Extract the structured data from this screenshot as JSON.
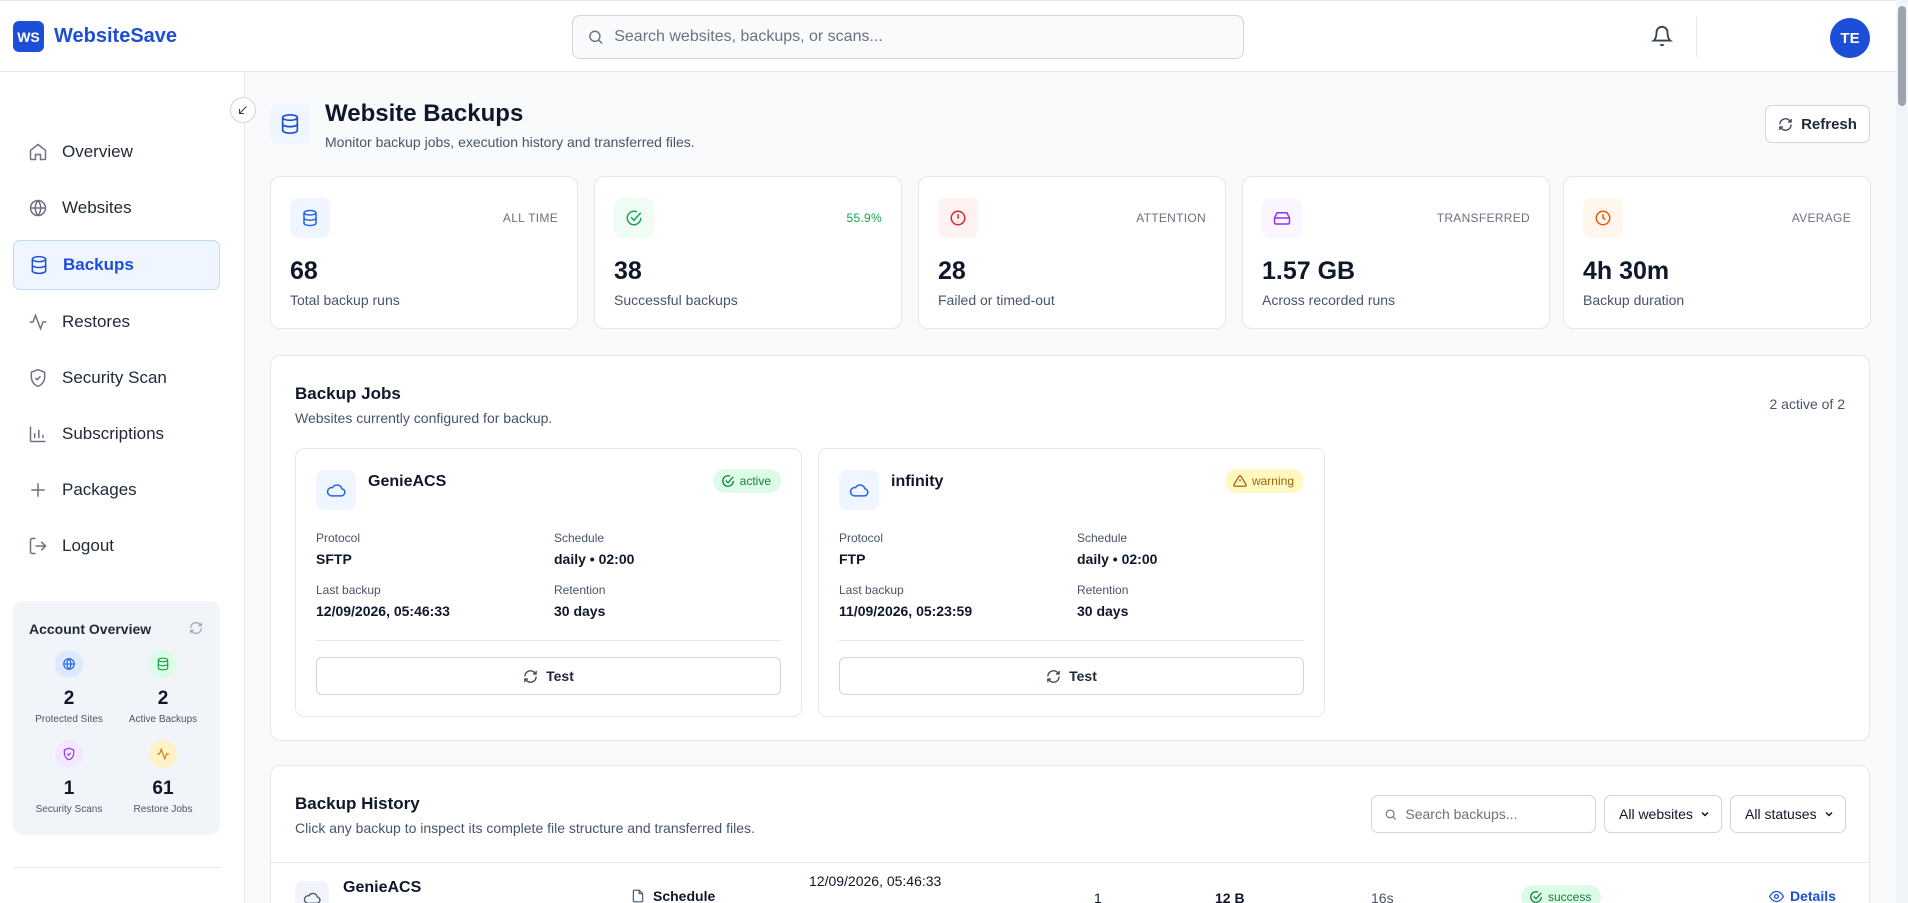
{
  "app": {
    "logo_badge": "WS",
    "name": "WebsiteSave"
  },
  "header": {
    "search_placeholder": "Search websites, backups, or scans...",
    "avatar_initials": "TE"
  },
  "sidebar": {
    "items": [
      {
        "label": "Overview",
        "icon": "home-icon"
      },
      {
        "label": "Websites",
        "icon": "globe-icon"
      },
      {
        "label": "Backups",
        "icon": "database-icon",
        "active": true
      },
      {
        "label": "Restores",
        "icon": "activity-icon"
      },
      {
        "label": "Security Scan",
        "icon": "shield-icon"
      },
      {
        "label": "Subscriptions",
        "icon": "bar-chart-icon"
      },
      {
        "label": "Packages",
        "icon": "plus-icon"
      },
      {
        "label": "Logout",
        "icon": "logout-icon"
      }
    ],
    "account_overview": {
      "title": "Account Overview",
      "stats": [
        {
          "value": "2",
          "label": "Protected Sites"
        },
        {
          "value": "2",
          "label": "Active Backups"
        },
        {
          "value": "1",
          "label": "Security Scans"
        },
        {
          "value": "61",
          "label": "Restore Jobs"
        }
      ]
    }
  },
  "page": {
    "title": "Website Backups",
    "subtitle": "Monitor backup jobs, execution history and transferred files.",
    "refresh_label": "Refresh"
  },
  "stats": [
    {
      "tag": "ALL TIME",
      "value": "68",
      "desc": "Total backup runs",
      "color": "#2563eb"
    },
    {
      "tag": "55.9%",
      "value": "38",
      "desc": "Successful backups",
      "color": "#16a34a"
    },
    {
      "tag": "ATTENTION",
      "value": "28",
      "desc": "Failed or timed-out",
      "color": "#dc2626"
    },
    {
      "tag": "TRANSFERRED",
      "value": "1.57 GB",
      "desc": "Across recorded runs",
      "color": "#9333ea"
    },
    {
      "tag": "AVERAGE",
      "value": "4h 30m",
      "desc": "Backup duration",
      "color": "#ea580c"
    }
  ],
  "jobs_panel": {
    "title": "Backup Jobs",
    "subtitle": "Websites currently configured for backup.",
    "meta": "2 active of 2",
    "labels": {
      "protocol": "Protocol",
      "schedule": "Schedule",
      "last_backup": "Last backup",
      "retention": "Retention",
      "test": "Test"
    },
    "jobs": [
      {
        "name": "GenieACS",
        "status": "active",
        "protocol": "SFTP",
        "schedule": "daily • 02:00",
        "last_backup": "12/09/2026, 05:46:33",
        "retention": "30 days"
      },
      {
        "name": "infinity",
        "status": "warning",
        "protocol": "FTP",
        "schedule": "daily • 02:00",
        "last_backup": "11/09/2026, 05:23:59",
        "retention": "30 days"
      }
    ]
  },
  "history_panel": {
    "title": "Backup History",
    "subtitle": "Click any backup to inspect its complete file structure and transferred files.",
    "search_placeholder": "Search backups...",
    "website_filter": "All websites",
    "status_filter": "All statuses",
    "rows": [
      {
        "website": "GenieACS",
        "trigger": "Schedule",
        "time": "12/09/2026, 05:46:33",
        "files": "1",
        "size": "12 B",
        "duration": "16s",
        "status": "success",
        "action": "Details"
      }
    ]
  },
  "colors": {
    "accent": "#1d4ed8",
    "success": "#16a34a",
    "warning": "#ca8a04",
    "danger": "#dc2626"
  }
}
